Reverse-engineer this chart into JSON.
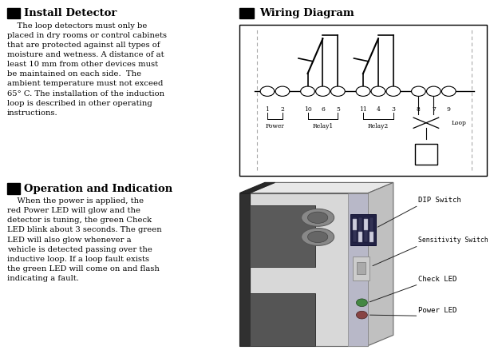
{
  "bg_color": "#ffffff",
  "title1": "Install Detector",
  "title2": "Wiring Diagram",
  "title3": "Operation and Indication",
  "body1": "    The loop detectors must only be\nplaced in dry rooms or control cabinets\nthat are protected against all types of\nmoisture and wetness. A distance of at\nleast 10 mm from other devices must\nbe maintained on each side.  The\nambient temperature must not exceed\n65° C. The installation of the induction\nloop is described in other operating\ninstructions.",
  "body3": "    When the power is applied, the\nred Power LED will glow and the\ndetector is tuning, the green Check\nLED blink about 3 seconds. The green\nLED will also glow whenever a\nvehicle is detected passing over the\ninductive loop. If a loop fault exists\nthe green LED will come on and flash\nindicating a fault.",
  "pin_labels": [
    "1",
    "2",
    "10",
    "6",
    "5",
    "11",
    "4",
    "3",
    "8",
    "7",
    "9"
  ],
  "device_labels": [
    "DIP Switch",
    "Sensitivity Switch",
    "Check LED",
    "Power LED"
  ]
}
